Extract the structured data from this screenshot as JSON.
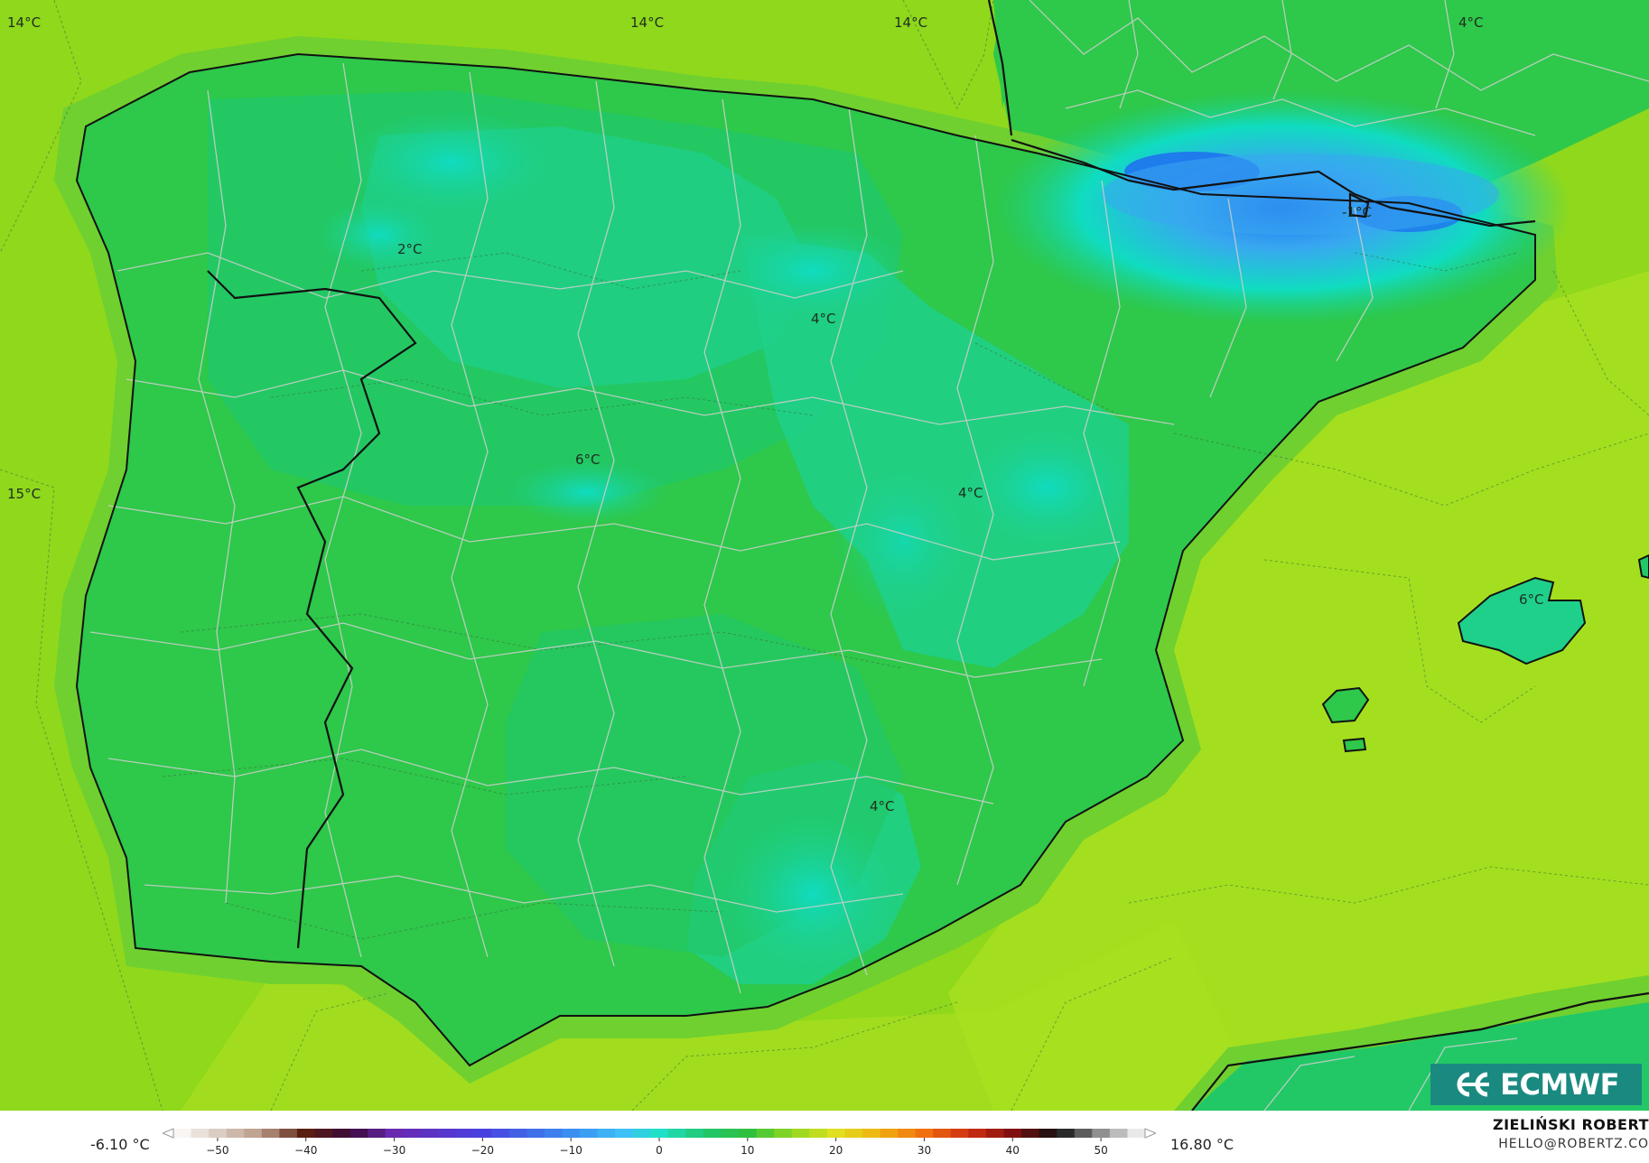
{
  "map": {
    "contour_labels": [
      "14°C",
      "14°C",
      "14°C",
      "4°C",
      "2°C",
      "4°C",
      "6°C",
      "4°C",
      "15°C",
      "-1°C",
      "6°C",
      "4°C"
    ],
    "colors": {
      "sea_warm": "#a8e020",
      "sea": "#8fd81c",
      "coast_band": "#6fd030",
      "land": "#2ec84a",
      "land_high": "#1fd08a",
      "cold": "#10dcc0",
      "colder": "#38a8f0",
      "coldest": "#1e6ff0",
      "coastline": "#111111",
      "borders": "#c8c8c8"
    }
  },
  "colorbar": {
    "min_label": "-6.10 °C",
    "max_label": "16.80 °C",
    "ticks": [
      "−50",
      "−40",
      "−30",
      "−20",
      "−10",
      "0",
      "10",
      "20",
      "30",
      "40",
      "50"
    ],
    "range": [
      -55,
      55
    ],
    "stops": [
      {
        "v": -55,
        "c": "#ffffff"
      },
      {
        "v": -45,
        "c": "#b89a86"
      },
      {
        "v": -40,
        "c": "#5a1f10"
      },
      {
        "v": -35,
        "c": "#3a0a3a"
      },
      {
        "v": -30,
        "c": "#6a2ab0"
      },
      {
        "v": -20,
        "c": "#4a40e0"
      },
      {
        "v": -10,
        "c": "#3a8ff0"
      },
      {
        "v": -4,
        "c": "#40c0f8"
      },
      {
        "v": 0,
        "c": "#20e0c8"
      },
      {
        "v": 5,
        "c": "#20c870"
      },
      {
        "v": 10,
        "c": "#30c040"
      },
      {
        "v": 15,
        "c": "#90d820"
      },
      {
        "v": 20,
        "c": "#e0e020"
      },
      {
        "v": 25,
        "c": "#f0b010"
      },
      {
        "v": 30,
        "c": "#f07010"
      },
      {
        "v": 35,
        "c": "#d03010"
      },
      {
        "v": 40,
        "c": "#801010"
      },
      {
        "v": 45,
        "c": "#101010"
      },
      {
        "v": 50,
        "c": "#909090"
      },
      {
        "v": 55,
        "c": "#ffffff"
      }
    ]
  },
  "author": {
    "name": "ZIELIŃSKI ROBERT",
    "email": "HELLO@ROBERTZ.CO"
  },
  "logo": {
    "text": "ECMWF",
    "icon": "ecmwf-logo-icon"
  }
}
